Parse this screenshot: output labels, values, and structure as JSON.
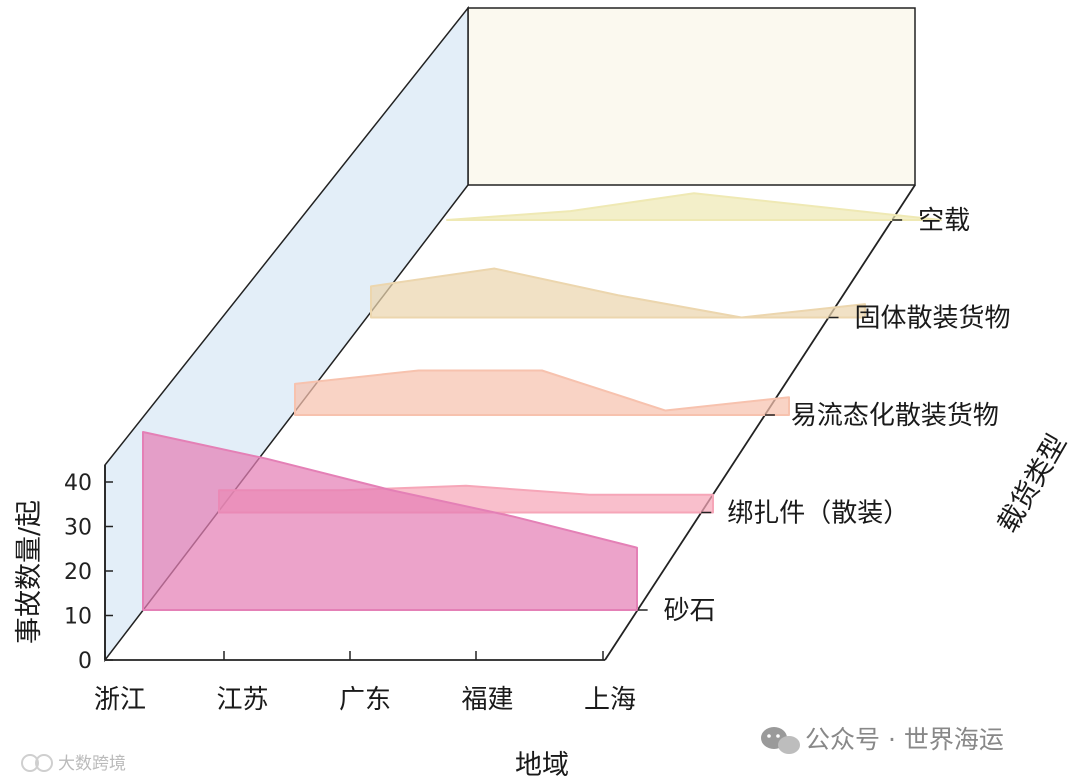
{
  "chart_data": {
    "type": "area",
    "xlabel": "地域",
    "ylabel": "事故数量/起",
    "zlabel": "载货类型",
    "categories": [
      "浙江",
      "江苏",
      "广东",
      "福建",
      "上海"
    ],
    "yticks": [
      "0",
      "10",
      "20",
      "30",
      "40"
    ],
    "ylim": [
      0,
      45
    ],
    "series": [
      {
        "name": "砂石",
        "values": [
          40,
          34,
          27,
          21,
          14
        ],
        "color": "#e480b6"
      },
      {
        "name": "绑扎件（散装）",
        "values": [
          5,
          5,
          6,
          4,
          4
        ],
        "color": "#f6a6b8"
      },
      {
        "name": "易流态化散装货物",
        "values": [
          7,
          10,
          10,
          1,
          4
        ],
        "color": "#f7c2ae"
      },
      {
        "name": "固体散装货物",
        "values": [
          7,
          11,
          5,
          0,
          3
        ],
        "color": "#ecd6ae"
      },
      {
        "name": "空载",
        "values": [
          0,
          2,
          6,
          3,
          0
        ],
        "color": "#efe9b4"
      }
    ]
  },
  "watermark": {
    "right_text": "公众号 · 世界海运",
    "left_text": "大数跨境"
  }
}
